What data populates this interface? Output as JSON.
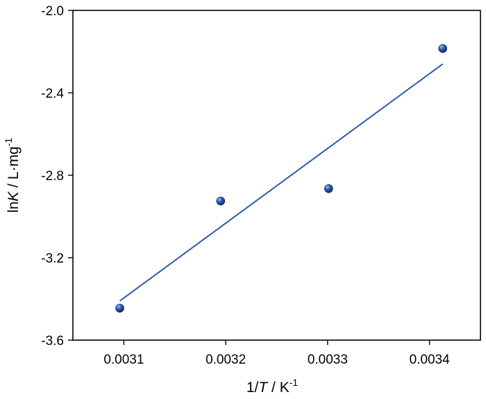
{
  "chart_data": {
    "type": "scatter",
    "title": "",
    "xlabel": {
      "prefix": "1/",
      "symbol": "T",
      "middle": " / K",
      "sup": "-1"
    },
    "ylabel": {
      "prefix": "ln",
      "symbol": "K",
      "middle": " / L·mg",
      "sup": "-1"
    },
    "xlim": [
      0.00305,
      0.00345
    ],
    "ylim": [
      -3.6,
      -2.0
    ],
    "xticks": [
      0.0031,
      0.0032,
      0.0033,
      0.0034
    ],
    "xtick_labels": [
      "0.0031",
      "0.0032",
      "0.0033",
      "0.0034"
    ],
    "yticks": [
      -2.0,
      -2.4,
      -2.8,
      -3.2,
      -3.6
    ],
    "ytick_labels": [
      "-2.0",
      "-2.4",
      "-2.8",
      "-3.2",
      "-3.6"
    ],
    "grid": false,
    "series": [
      {
        "points": [
          {
            "x": 0.003096,
            "y": -3.445
          },
          {
            "x": 0.003195,
            "y": -2.925
          },
          {
            "x": 0.003301,
            "y": -2.865
          },
          {
            "x": 0.003413,
            "y": -2.185
          }
        ],
        "color": "#1f4fa0"
      }
    ],
    "fit_line": {
      "x": [
        0.003096,
        0.003413
      ],
      "y": [
        -3.41,
        -2.26
      ],
      "color": "#2e5aa8"
    }
  }
}
